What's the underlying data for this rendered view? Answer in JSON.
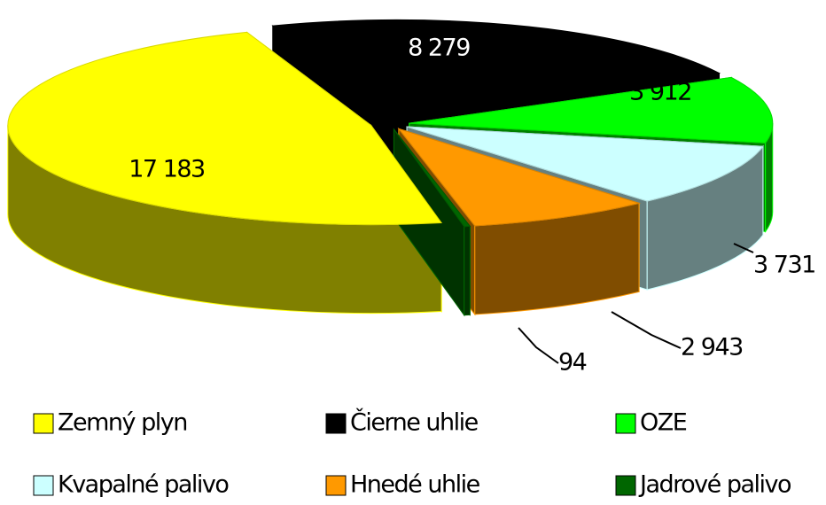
{
  "chart_data": {
    "type": "pie",
    "categories": [
      "Čierne uhlie",
      "OZE",
      "Kvapalné palivo",
      "Hnedé uhlie",
      "Jadrové palivo",
      "Zemný plyn"
    ],
    "values": [
      8279,
      3912,
      3731,
      2943,
      94,
      17183
    ],
    "value_labels": [
      "8 279",
      "3 912",
      "3 731",
      "2 943",
      "94",
      "17 183"
    ],
    "colors": [
      "#000000",
      "#00ff00",
      "#ccffff",
      "#ff9900",
      "#006600",
      "#ffff00"
    ],
    "legend": "bottom"
  }
}
